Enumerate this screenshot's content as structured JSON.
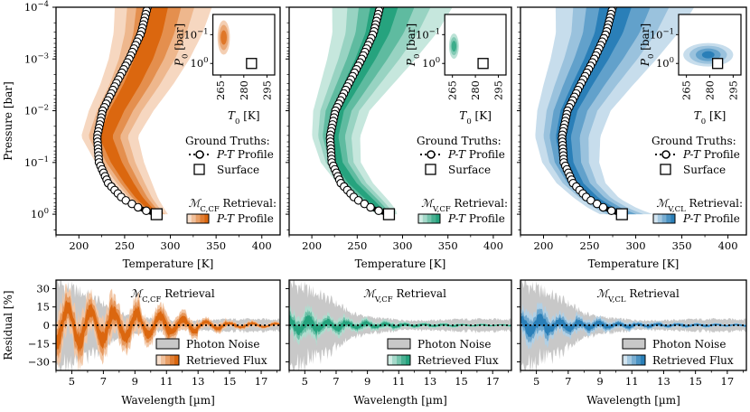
{
  "chart_data": [
    {
      "type": "area",
      "panel": "pt-1",
      "xlabel": "Temperature [K]",
      "ylabel": "Pressure [bar]",
      "x_ticks": [
        "200",
        "250",
        "300",
        "350",
        "400"
      ],
      "y_ticks": [
        "10^-4",
        "10^-3",
        "10^-2",
        "10^-1",
        "10^0"
      ],
      "xlim": [
        175,
        420
      ],
      "ylim_log10": [
        0.4,
        -4
      ],
      "color": "#d95f02",
      "legend_ground_title": "Ground Truths:",
      "legend_profile": "P-T Profile",
      "legend_surface": "Surface",
      "legend_retrieval": "M_C,CF Retrieval:",
      "legend_retrieval_item": "P-T Profile",
      "surface_point": {
        "T": 285,
        "P": 1
      },
      "profile_T": [
        275,
        268,
        255,
        240,
        226,
        220,
        222,
        232,
        248,
        268,
        285
      ],
      "profile_log10P": [
        -4,
        -3.5,
        -3,
        -2.5,
        -2,
        -1.5,
        -1,
        -0.6,
        -0.3,
        -0.1,
        0
      ],
      "band_half_width_K": [
        24,
        22,
        20,
        18,
        16,
        14,
        12,
        10,
        8,
        6,
        4
      ],
      "band_offset_K": [
        8,
        10,
        14,
        16,
        14,
        8,
        18,
        22,
        18,
        10,
        2
      ],
      "inset": {
        "xlabel": "T_0 [K]",
        "ylabel": "P_0 [bar]",
        "x_ticks": [
          "265",
          "280",
          "295"
        ],
        "y_ticks": [
          "10^-1",
          "10^0"
        ],
        "posterior_center": {
          "T": 267,
          "log10P": -0.9
        },
        "truth": {
          "T": 285,
          "log10P": 0
        }
      }
    },
    {
      "type": "area",
      "panel": "pt-2",
      "xlabel": "Temperature [K]",
      "x_ticks": [
        "200",
        "250",
        "300",
        "350",
        "400"
      ],
      "xlim": [
        175,
        420
      ],
      "ylim_log10": [
        0.4,
        -4
      ],
      "color": "#1b9e77",
      "legend_ground_title": "Ground Truths:",
      "legend_profile": "P-T Profile",
      "legend_surface": "Surface",
      "legend_retrieval": "M_V,CF Retrieval:",
      "legend_retrieval_item": "P-T Profile",
      "surface_point": {
        "T": 285,
        "P": 1
      },
      "profile_T": [
        275,
        268,
        255,
        240,
        226,
        220,
        222,
        232,
        248,
        268,
        285
      ],
      "profile_log10P": [
        -4,
        -3.5,
        -3,
        -2.5,
        -2,
        -1.5,
        -1,
        -0.6,
        -0.3,
        -0.1,
        0
      ],
      "band_half_width_K": [
        30,
        26,
        22,
        18,
        14,
        12,
        10,
        9,
        8,
        7,
        5
      ],
      "band_offset_K": [
        2,
        2,
        2,
        2,
        1,
        2,
        6,
        12,
        14,
        6,
        -4
      ],
      "inset": {
        "xlabel": "T_0 [K]",
        "ylabel": "P_0 [bar]",
        "x_ticks": [
          "265",
          "280",
          "295"
        ],
        "y_ticks": [
          "10^-1",
          "10^0"
        ],
        "posterior_center": {
          "T": 266,
          "log10P": -0.6
        },
        "truth": {
          "T": 285,
          "log10P": 0
        }
      }
    },
    {
      "type": "area",
      "panel": "pt-3",
      "xlabel": "Temperature [K]",
      "x_ticks": [
        "200",
        "250",
        "300",
        "350",
        "400"
      ],
      "xlim": [
        175,
        420
      ],
      "ylim_log10": [
        0.4,
        -4
      ],
      "color": "#1f78b4",
      "legend_ground_title": "Ground Truths:",
      "legend_profile": "P-T Profile",
      "legend_surface": "Surface",
      "legend_retrieval": "M_V,CL Retrieval:",
      "legend_retrieval_item": "P-T Profile",
      "surface_point": {
        "T": 285,
        "P": 1
      },
      "profile_T": [
        275,
        268,
        255,
        240,
        226,
        220,
        222,
        232,
        248,
        268,
        285
      ],
      "profile_log10P": [
        -4,
        -3.5,
        -3,
        -2.5,
        -2,
        -1.5,
        -1,
        -0.6,
        -0.3,
        -0.1,
        0
      ],
      "band_half_width_K": [
        34,
        30,
        26,
        22,
        18,
        16,
        14,
        12,
        11,
        12,
        13
      ],
      "band_offset_K": [
        0,
        0,
        0,
        0,
        0,
        0,
        2,
        4,
        6,
        4,
        0
      ],
      "inset": {
        "xlabel": "T_0 [K]",
        "ylabel": "P_0 [bar]",
        "x_ticks": [
          "265",
          "280",
          "295"
        ],
        "y_ticks": [
          "10^-1",
          "10^0"
        ],
        "posterior_center": {
          "T": 279,
          "log10P": -0.3
        },
        "truth": {
          "T": 285,
          "log10P": 0
        }
      }
    },
    {
      "type": "area",
      "panel": "res-1",
      "title": "M_C,CF Retrieval",
      "xlabel": "Wavelength [µm]",
      "ylabel": "Residual [%]",
      "x_ticks": [
        "5",
        "7",
        "9",
        "11",
        "13",
        "15",
        "17"
      ],
      "y_ticks": [
        "30",
        "15",
        "0",
        "-15",
        "-30"
      ],
      "xlim": [
        4,
        18.2
      ],
      "ylim": [
        -37,
        37
      ],
      "color": "#d95f02",
      "legend_noise": "Photon Noise",
      "legend_flux": "Retrieved Flux",
      "noise_wavelength": [
        4,
        4.5,
        5,
        5.5,
        6,
        6.5,
        7,
        8,
        9,
        10,
        11,
        12,
        13,
        14,
        15,
        16,
        17,
        18.2
      ],
      "noise_envelope_pct": [
        36,
        33,
        30,
        28,
        25,
        22,
        18,
        10,
        7,
        5.5,
        4.5,
        4,
        4,
        4.5,
        5,
        5,
        5,
        5
      ]
    },
    {
      "type": "area",
      "panel": "res-2",
      "title": "M_V,CF Retrieval",
      "xlabel": "Wavelength [µm]",
      "x_ticks": [
        "5",
        "7",
        "9",
        "11",
        "13",
        "15",
        "17"
      ],
      "xlim": [
        4,
        18.2
      ],
      "ylim": [
        -37,
        37
      ],
      "color": "#1b9e77",
      "legend_noise": "Photon Noise",
      "legend_flux": "Retrieved Flux",
      "noise_wavelength": [
        4,
        4.5,
        5,
        5.5,
        6,
        6.5,
        7,
        8,
        9,
        10,
        11,
        12,
        13,
        14,
        15,
        16,
        17,
        18.2
      ],
      "noise_envelope_pct": [
        36,
        33,
        30,
        28,
        25,
        22,
        18,
        10,
        7,
        5.5,
        4.5,
        4,
        4,
        4.5,
        5,
        5,
        5,
        5
      ]
    },
    {
      "type": "area",
      "panel": "res-3",
      "title": "M_V,CL Retrieval",
      "xlabel": "Wavelength [µm]",
      "x_ticks": [
        "5",
        "7",
        "9",
        "11",
        "13",
        "15",
        "17"
      ],
      "xlim": [
        4,
        18.2
      ],
      "ylim": [
        -37,
        37
      ],
      "color": "#1f78b4",
      "legend_noise": "Photon Noise",
      "legend_flux": "Retrieved Flux",
      "noise_wavelength": [
        4,
        4.5,
        5,
        5.5,
        6,
        6.5,
        7,
        8,
        9,
        10,
        11,
        12,
        13,
        14,
        15,
        16,
        17,
        18.2
      ],
      "noise_envelope_pct": [
        36,
        33,
        30,
        28,
        25,
        22,
        18,
        10,
        7,
        5.5,
        4.5,
        4,
        4,
        4.5,
        5,
        5,
        5,
        5
      ]
    }
  ]
}
